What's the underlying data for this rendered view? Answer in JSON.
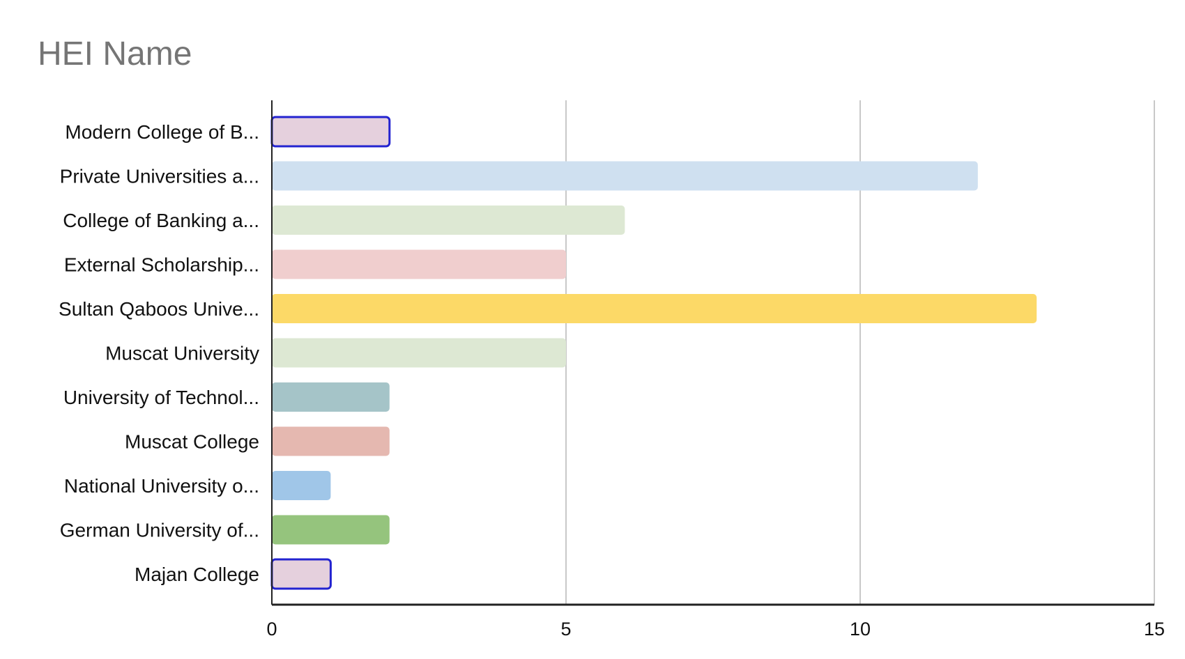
{
  "chart_data": {
    "type": "bar",
    "orientation": "horizontal",
    "title": "HEI Name",
    "xlabel": "",
    "ylabel": "",
    "xlim": [
      0,
      15
    ],
    "xticks": [
      0,
      5,
      10,
      15
    ],
    "grid": true,
    "legend": "none",
    "categories": [
      "Modern College of B...",
      "Private Universities a...",
      "College of Banking a...",
      "External  Scholarship...",
      "Sultan Qaboos Unive...",
      "Muscat University",
      "University of Technol...",
      "Muscat College",
      "National University o...",
      "German University of...",
      "Majan College"
    ],
    "values": [
      2,
      12,
      6,
      5,
      13,
      5,
      2,
      2,
      1,
      2,
      1
    ],
    "colors": [
      "#e5d0dd",
      "#cfe0f0",
      "#dde8d3",
      "#f0cece",
      "#fcd967",
      "#dde8d3",
      "#a5c4c8",
      "#e5b8b0",
      "#a0c6e8",
      "#95c47d",
      "#e5d0dd"
    ],
    "highlighted": [
      0,
      10
    ],
    "highlight_color": "#2323d0"
  }
}
